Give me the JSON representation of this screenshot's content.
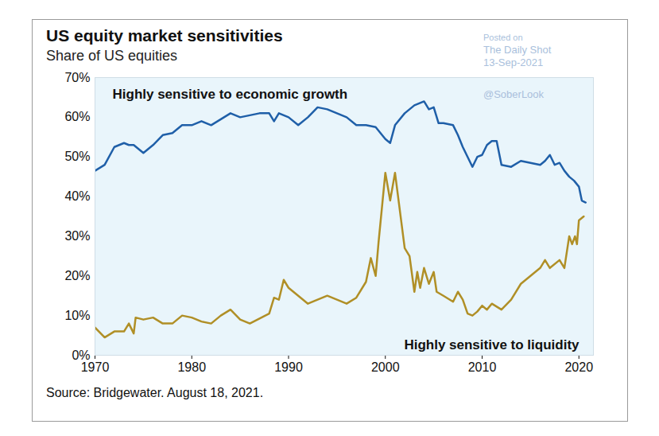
{
  "chart_data": {
    "type": "line",
    "title": "US equity market sensitivities",
    "subtitle": "Share of US equities",
    "caption": "Source: Bridgewater. August 18, 2021.",
    "annotations": [
      "Posted on",
      "The Daily Shot",
      "13-Sep-2021",
      "@SoberLook"
    ],
    "xlim": [
      1970,
      2021.5
    ],
    "xticks": [
      1970,
      1980,
      1990,
      2000,
      2010,
      2020
    ],
    "ylim": [
      0,
      70
    ],
    "yticks": [
      {
        "value": 0,
        "label": "0%"
      },
      {
        "value": 10,
        "label": "10%"
      },
      {
        "value": 20,
        "label": "20%"
      },
      {
        "value": 30,
        "label": "30%"
      },
      {
        "value": 40,
        "label": "40%"
      },
      {
        "value": 50,
        "label": "50%"
      },
      {
        "value": 60,
        "label": "60%"
      },
      {
        "value": 70,
        "label": "70%"
      }
    ],
    "grid": false,
    "series": [
      {
        "name": "Highly sensitive to economic growth",
        "color": "#1f5fa8",
        "x": [
          1970,
          1971,
          1972,
          1973,
          1973.5,
          1974,
          1975,
          1976,
          1977,
          1978,
          1979,
          1980,
          1981,
          1982,
          1983,
          1984,
          1985,
          1986,
          1987,
          1988,
          1988.5,
          1989,
          1990,
          1991,
          1992,
          1993,
          1994,
          1995,
          1996,
          1997,
          1998,
          1999,
          2000,
          2000.5,
          2001,
          2002,
          2003,
          2004,
          2004.5,
          2005,
          2005.5,
          2006,
          2007,
          2007.5,
          2008,
          2008.5,
          2009,
          2009.5,
          2010,
          2010.5,
          2011,
          2011.5,
          2012,
          2013,
          2014,
          2015,
          2016,
          2016.5,
          2017,
          2017.5,
          2018,
          2018.5,
          2019,
          2019.5,
          2020,
          2020.3,
          2020.7
        ],
        "values": [
          46.5,
          48,
          52.5,
          53.5,
          53,
          53,
          51,
          53,
          55.5,
          56,
          58,
          58,
          59,
          58,
          59.5,
          61,
          60,
          60.5,
          61,
          61,
          59,
          61,
          60,
          58,
          60,
          62.5,
          62,
          61,
          60,
          58,
          58,
          57.5,
          54.5,
          53.5,
          58,
          61,
          63,
          64,
          62,
          62.5,
          58.5,
          58.5,
          58,
          55.5,
          52.5,
          50,
          47.5,
          50,
          50.5,
          53,
          54,
          54,
          48,
          47.5,
          49,
          48.5,
          48,
          49,
          50.5,
          48,
          48.5,
          46.5,
          45,
          44,
          42.5,
          39,
          38.5
        ]
      },
      {
        "name": "Highly sensitive to liquidity",
        "color": "#b08f26",
        "x": [
          1970,
          1971,
          1972,
          1973,
          1973.5,
          1974,
          1974.2,
          1975,
          1976,
          1977,
          1978,
          1979,
          1980,
          1981,
          1982,
          1983,
          1984,
          1985,
          1986,
          1988,
          1988.5,
          1989,
          1989.5,
          1990,
          1992,
          1994,
          1995,
          1996,
          1997,
          1998,
          1998.5,
          1999,
          1999.3,
          2000,
          2000.5,
          2001,
          2002,
          2002.5,
          2003,
          2003.3,
          2003.6,
          2004,
          2004.5,
          2005,
          2005.3,
          2006,
          2007,
          2007.5,
          2008,
          2008.5,
          2009,
          2009.5,
          2010,
          2010.5,
          2011,
          2012,
          2013,
          2014,
          2015,
          2016,
          2016.5,
          2017,
          2018,
          2018.5,
          2019,
          2019.3,
          2019.6,
          2019.8,
          2020,
          2020.5
        ],
        "values": [
          7,
          4.5,
          6,
          6,
          8,
          5.5,
          9.5,
          9,
          9.5,
          8,
          8,
          10,
          9.5,
          8.5,
          8,
          10,
          11.5,
          9,
          8,
          10.5,
          14.5,
          14,
          19,
          17,
          13,
          15,
          14,
          13,
          14.5,
          18.5,
          24.5,
          20,
          28.5,
          46,
          39,
          46,
          27,
          25,
          16,
          21,
          17,
          22,
          18,
          21,
          16,
          15,
          13.5,
          16,
          14,
          10.5,
          10,
          11,
          12.5,
          11.5,
          13,
          11.5,
          14,
          18,
          20,
          22,
          24,
          22,
          24,
          22,
          30,
          28,
          30,
          28,
          34,
          35
        ]
      }
    ]
  }
}
